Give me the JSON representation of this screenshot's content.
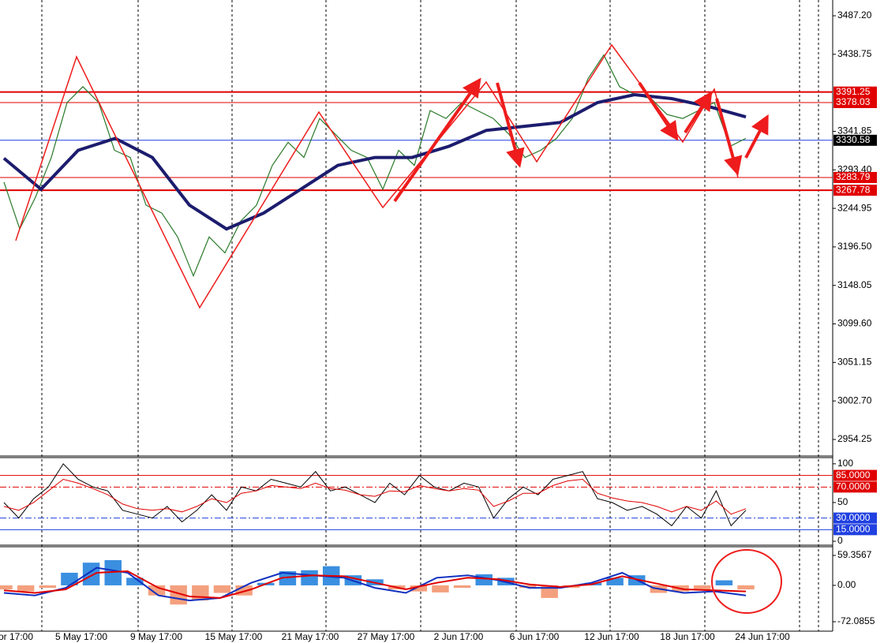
{
  "chart_data": [
    {
      "type": "line",
      "ylim": [
        2933.41,
        3507.05
      ],
      "yticks": [
        {
          "value": 3487.2,
          "label": "3487.20"
        },
        3438.75,
        3341.85,
        {
          "value": 3293.4,
          "label": "3293.40"
        },
        3244.95,
        {
          "value": 3196.5,
          "label": "3196.50"
        },
        3148.05,
        {
          "value": 3099.6,
          "label": "3099.60"
        },
        3051.15,
        {
          "value": 3002.7,
          "label": "3002.70"
        },
        2954.25
      ],
      "levels": [
        {
          "value": 3391.25,
          "color": "#e00000",
          "width": 2
        },
        {
          "value": 3378.03,
          "color": "#e00000",
          "width": 1
        },
        {
          "value": 3330.58,
          "color": "#000000",
          "line_color": "#2040e0",
          "width": 1
        },
        {
          "value": 3283.79,
          "color": "#e00000",
          "width": 1
        },
        {
          "value": 3267.78,
          "color": "#e00000",
          "width": 2
        }
      ],
      "series": [
        {
          "color": "#2a7a2a",
          "width": 1.2,
          "values": [
            3278,
            3219,
            3259,
            3309,
            3378,
            3398,
            3378,
            3318,
            3309,
            3249,
            3239,
            3209,
            3160,
            3209,
            3189,
            3229,
            3249,
            3299,
            3328,
            3309,
            3358,
            3338,
            3318,
            3309,
            3269,
            3318,
            3299,
            3368,
            3358,
            3378,
            3368,
            3358,
            3338,
            3309,
            3318,
            3333,
            3358,
            3408,
            3438,
            3398,
            3388,
            3383,
            3363,
            3358,
            3368,
            3378,
            3323,
            3333
          ]
        },
        {
          "color": "#1c1c6e",
          "width": 4,
          "values": [
            3308,
            3269,
            3318,
            3333,
            3309,
            3249,
            3219,
            3239,
            3269,
            3299,
            3309,
            3309,
            3323,
            3343,
            3348,
            3353,
            3378,
            3388,
            3383,
            3373,
            3360
          ]
        }
      ]
    },
    {
      "type": "line",
      "ylim": [
        -4,
        108
      ],
      "yticks": [
        100,
        50,
        0
      ],
      "levels": [
        {
          "value": 85,
          "label": "85.0000",
          "color": "#e00000",
          "width": 1
        },
        {
          "value": 70,
          "label": "70.0000",
          "color": "#e00000",
          "width": 1,
          "dash": "8 3 2 3"
        },
        {
          "value": 30,
          "label": "30.0000",
          "color": "#2040e0",
          "width": 1,
          "dash": "8 3 2 3"
        },
        {
          "value": 15,
          "label": "15.0000",
          "color": "#2040e0",
          "width": 1
        }
      ],
      "series": [
        {
          "color": "#000000",
          "width": 1,
          "values": [
            50,
            30,
            55,
            70,
            100,
            80,
            70,
            65,
            40,
            35,
            30,
            45,
            25,
            40,
            60,
            40,
            70,
            65,
            80,
            75,
            70,
            90,
            65,
            70,
            60,
            50,
            75,
            60,
            85,
            70,
            65,
            75,
            70,
            30,
            55,
            70,
            60,
            80,
            85,
            90,
            55,
            50,
            40,
            45,
            35,
            20,
            45,
            30,
            65,
            20,
            40
          ]
        },
        {
          "color": "#e00000",
          "width": 1,
          "values": [
            45,
            40,
            50,
            65,
            80,
            75,
            68,
            60,
            48,
            42,
            40,
            42,
            38,
            45,
            55,
            50,
            62,
            65,
            72,
            70,
            68,
            75,
            68,
            66,
            60,
            58,
            65,
            64,
            72,
            68,
            65,
            68,
            66,
            45,
            52,
            62,
            62,
            72,
            78,
            80,
            62,
            56,
            52,
            50,
            45,
            38,
            45,
            40,
            52,
            35,
            42
          ]
        }
      ]
    },
    {
      "type": "line",
      "ylim": [
        -90.86,
        76.57
      ],
      "yticks": [
        59.3567,
        {
          "value": 0,
          "label": "0.00"
        },
        -72.0855
      ],
      "levels": [],
      "series": [
        {
          "kind": "bar",
          "color": "#3a8fe0",
          "negative_color": "#f4a07e",
          "values": [
            -8,
            -12,
            -5,
            25,
            45,
            50,
            15,
            -20,
            -38,
            -30,
            -15,
            -20,
            5,
            28,
            30,
            38,
            20,
            12,
            -8,
            -12,
            -14,
            -5,
            22,
            15,
            -5,
            -25,
            -5,
            5,
            15,
            20,
            -15,
            -12,
            -8,
            10,
            -8
          ]
        },
        {
          "color": "#1030c0",
          "width": 2,
          "values": [
            -15,
            -20,
            -5,
            35,
            25,
            -20,
            -30,
            -25,
            5,
            25,
            20,
            15,
            -5,
            -15,
            15,
            20,
            10,
            -5,
            -5,
            5,
            25,
            -5,
            -15,
            -12,
            -20
          ]
        },
        {
          "color": "#e00000",
          "width": 2,
          "values": [
            -10,
            -15,
            -8,
            25,
            28,
            -5,
            -22,
            -25,
            -8,
            15,
            20,
            18,
            5,
            -8,
            5,
            15,
            12,
            2,
            -3,
            2,
            18,
            5,
            -8,
            -10,
            -12
          ]
        }
      ]
    }
  ],
  "x_axis_labels": [
    "or 17:00",
    "5 May 17:00",
    "9 May 17:00",
    "15 May 17:00",
    "21 May 17:00",
    "27 May 17:00",
    "2 Jun 17:00",
    "6 Jun 17:00",
    "12 Jun 17:00",
    "18 Jun 17:00",
    "24 Jun 17:00"
  ]
}
